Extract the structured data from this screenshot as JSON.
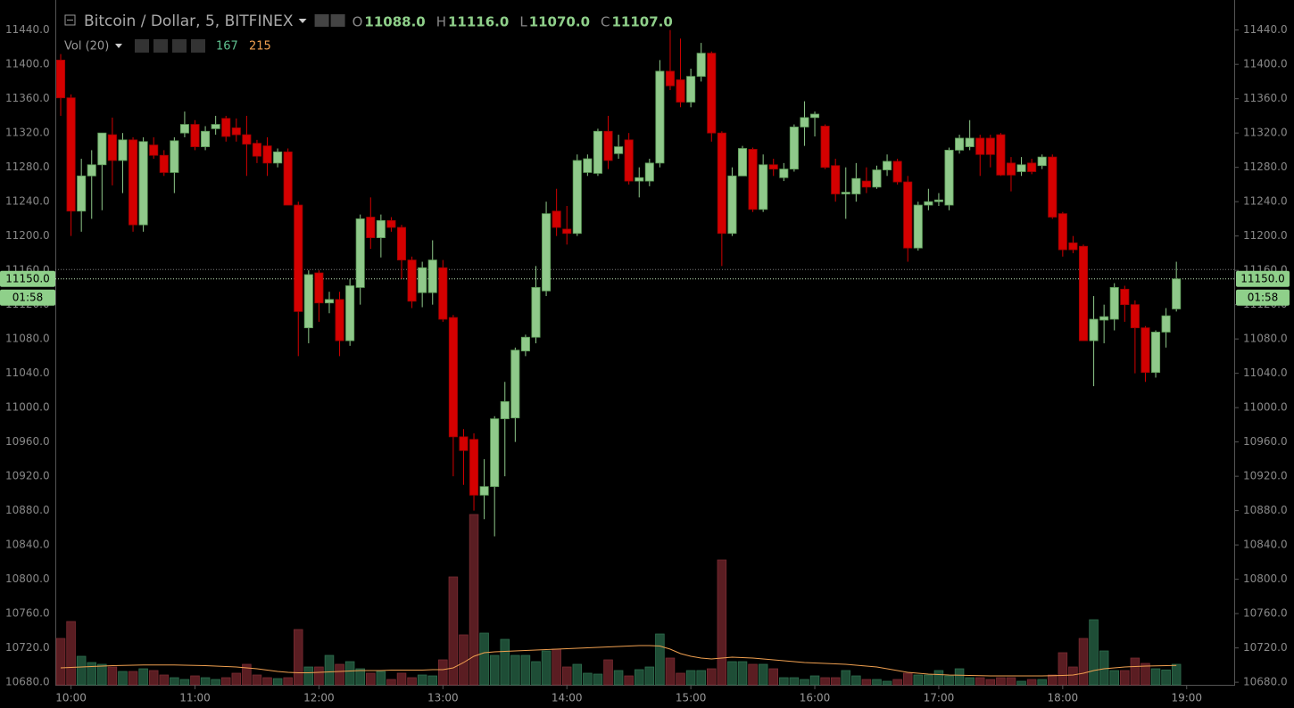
{
  "chart_data": {
    "type": "candlestick",
    "title": "Bitcoin / Dollar, 5, BITFINEX",
    "legend_keys": [
      "O",
      "H",
      "L",
      "C"
    ],
    "legend_values": [
      {
        "value": 11088,
        "label": "11088.0"
      },
      {
        "value": 11116,
        "label": "11116.0"
      },
      {
        "value": 11070,
        "label": "11070.0"
      },
      {
        "value": 11107,
        "label": "11107.0"
      }
    ],
    "volume_title": "Vol (20)",
    "volume_legend": [
      167,
      215
    ],
    "up_color": "#8fc98a",
    "down_color": "#d40000",
    "volume_up_color": "#1e4d36",
    "volume_down_color": "#5a1d22",
    "ma_color": "#f0a050",
    "legend_value_color": "#8fd08a",
    "xlim": [
      -0.52,
      113.6
    ],
    "xticks": [
      {
        "value": 1,
        "label": "10:00"
      },
      {
        "value": 13,
        "label": "11:00"
      },
      {
        "value": 25,
        "label": "12:00"
      },
      {
        "value": 37,
        "label": "13:00"
      },
      {
        "value": 49,
        "label": "14:00"
      },
      {
        "value": 61,
        "label": "15:00"
      },
      {
        "value": 73,
        "label": "16:00"
      },
      {
        "value": 85,
        "label": "17:00"
      },
      {
        "value": 97,
        "label": "18:00"
      },
      {
        "value": 109,
        "label": "19:00"
      }
    ],
    "ylim": [
      10677,
      11475
    ],
    "yticks": [
      {
        "value": 10680,
        "label": "10680.0"
      },
      {
        "value": 10720,
        "label": "10720.0"
      },
      {
        "value": 10760,
        "label": "10760.0"
      },
      {
        "value": 10800,
        "label": "10800.0"
      },
      {
        "value": 10840,
        "label": "10840.0"
      },
      {
        "value": 10880,
        "label": "10880.0"
      },
      {
        "value": 10920,
        "label": "10920.0"
      },
      {
        "value": 10960,
        "label": "10960.0"
      },
      {
        "value": 11000,
        "label": "11000.0"
      },
      {
        "value": 11040,
        "label": "11040.0"
      },
      {
        "value": 11080,
        "label": "11080.0"
      },
      {
        "value": 11120,
        "label": "11120.0"
      },
      {
        "value": 11160,
        "label": "11160.0"
      },
      {
        "value": 11200,
        "label": "11200.0"
      },
      {
        "value": 11240,
        "label": "11240.0"
      },
      {
        "value": 11280,
        "label": "11280.0"
      },
      {
        "value": 11320,
        "label": "11320.0"
      },
      {
        "value": 11360,
        "label": "11360.0"
      },
      {
        "value": 11400,
        "label": "11400.0"
      },
      {
        "value": 11440,
        "label": "11440.0"
      }
    ],
    "volume_ylim": [
      0,
      7680
    ],
    "ref_line": 11161,
    "price_line": {
      "value": 11150,
      "label": "11150.0"
    },
    "countdown": "01:58",
    "open": [
      11405,
      11361,
      11229,
      11270,
      11283,
      11318,
      11288,
      11312,
      11213,
      11306,
      11294,
      11274,
      11320,
      11330,
      11304,
      11325,
      11337,
      11326,
      11318,
      11308,
      11305,
      11285,
      11298,
      11236,
      11093,
      11157,
      11122,
      11126,
      11078,
      11140,
      11222,
      11198,
      11218,
      11210,
      11172,
      11134,
      11134,
      11163,
      11105,
      10966,
      10963,
      10898,
      10908,
      10987,
      10988,
      11066,
      11082,
      11136,
      11229,
      11208,
      11203,
      11274,
      11273,
      11322,
      11296,
      11312,
      11264,
      11264,
      11285,
      11392,
      11382,
      11356,
      11386,
      11413,
      11320,
      11203,
      11270,
      11301,
      11231,
      11283,
      11268,
      11278,
      11327,
      11338,
      11328,
      11282,
      11249,
      11249,
      11264,
      11257,
      11277,
      11287,
      11263,
      11186,
      11236,
      11240,
      11236,
      11300,
      11304,
      11314,
      11314,
      11318,
      11285,
      11275,
      11285,
      11282,
      11292,
      11226,
      11192,
      11188,
      11078,
      11102,
      11103,
      11138,
      11120,
      11093,
      11041,
      11088,
      11115
    ],
    "high": [
      11412,
      11365,
      11290,
      11300,
      11320,
      11338,
      11320,
      11315,
      11315,
      11315,
      11300,
      11315,
      11345,
      11335,
      11328,
      11340,
      11340,
      11337,
      11340,
      11312,
      11315,
      11302,
      11302,
      11240,
      11160,
      11160,
      11135,
      11135,
      11150,
      11225,
      11245,
      11225,
      11222,
      11213,
      11176,
      11170,
      11195,
      11172,
      11108,
      10975,
      10970,
      10940,
      10990,
      11030,
      11070,
      11085,
      11165,
      11240,
      11255,
      11235,
      11295,
      11295,
      11325,
      11340,
      11318,
      11320,
      11280,
      11290,
      11405,
      11440,
      11430,
      11395,
      11425,
      11415,
      11322,
      11280,
      11305,
      11303,
      11295,
      11290,
      11285,
      11330,
      11357,
      11345,
      11330,
      11290,
      11280,
      11285,
      11280,
      11282,
      11295,
      11290,
      11270,
      11240,
      11255,
      11250,
      11303,
      11318,
      11335,
      11318,
      11318,
      11320,
      11292,
      11292,
      11290,
      11295,
      11295,
      11228,
      11200,
      11190,
      11130,
      11120,
      11145,
      11142,
      11125,
      11095,
      11090,
      11116,
      11170
    ],
    "low": [
      11340,
      11200,
      11205,
      11220,
      11230,
      11259,
      11250,
      11205,
      11205,
      11290,
      11270,
      11250,
      11315,
      11300,
      11300,
      11318,
      11310,
      11310,
      11270,
      11285,
      11270,
      11280,
      11236,
      11060,
      11075,
      11100,
      11110,
      11060,
      11072,
      11120,
      11185,
      11175,
      11205,
      11150,
      11116,
      11117,
      11120,
      11100,
      10920,
      10910,
      10880,
      10870,
      10850,
      10920,
      10960,
      11060,
      11075,
      11130,
      11200,
      11190,
      11200,
      11270,
      11270,
      11278,
      11290,
      11260,
      11245,
      11258,
      11280,
      11370,
      11350,
      11350,
      11380,
      11310,
      11165,
      11200,
      11270,
      11228,
      11228,
      11270,
      11264,
      11275,
      11305,
      11316,
      11278,
      11240,
      11220,
      11240,
      11250,
      11255,
      11270,
      11260,
      11170,
      11183,
      11230,
      11235,
      11230,
      11296,
      11300,
      11270,
      11280,
      11270,
      11252,
      11270,
      11272,
      11278,
      11220,
      11176,
      11180,
      11078,
      11025,
      11075,
      11090,
      11100,
      11040,
      11030,
      11035,
      11070,
      11112
    ],
    "close": [
      11361,
      11229,
      11270,
      11283,
      11320,
      11288,
      11312,
      11213,
      11310,
      11294,
      11274,
      11311,
      11330,
      11304,
      11322,
      11330,
      11316,
      11318,
      11307,
      11293,
      11285,
      11298,
      11236,
      11112,
      11155,
      11122,
      11126,
      11078,
      11142,
      11220,
      11198,
      11218,
      11210,
      11172,
      11124,
      11163,
      11172,
      11103,
      10966,
      10950,
      10898,
      10908,
      10987,
      11007,
      11067,
      11082,
      11140,
      11226,
      11210,
      11203,
      11288,
      11290,
      11322,
      11288,
      11304,
      11264,
      11268,
      11285,
      11392,
      11375,
      11356,
      11386,
      11413,
      11320,
      11203,
      11270,
      11302,
      11231,
      11283,
      11278,
      11278,
      11327,
      11338,
      11342,
      11280,
      11249,
      11251,
      11267,
      11257,
      11277,
      11287,
      11263,
      11186,
      11236,
      11240,
      11242,
      11300,
      11314,
      11314,
      11295,
      11295,
      11271,
      11271,
      11283,
      11275,
      11292,
      11222,
      11184,
      11184,
      11078,
      11103,
      11106,
      11140,
      11120,
      11093,
      11041,
      11088,
      11107,
      11150
    ],
    "volume": [
      520,
      710,
      320,
      250,
      230,
      200,
      150,
      150,
      180,
      160,
      110,
      80,
      60,
      100,
      80,
      60,
      80,
      130,
      230,
      110,
      80,
      70,
      80,
      620,
      200,
      200,
      330,
      230,
      260,
      180,
      130,
      150,
      60,
      130,
      80,
      110,
      100,
      280,
      1210,
      560,
      1910,
      580,
      330,
      510,
      330,
      330,
      260,
      380,
      400,
      200,
      230,
      130,
      120,
      280,
      160,
      100,
      170,
      200,
      570,
      300,
      130,
      160,
      160,
      180,
      1400,
      260,
      260,
      230,
      230,
      180,
      80,
      80,
      60,
      100,
      80,
      80,
      160,
      100,
      60,
      60,
      40,
      60,
      130,
      110,
      110,
      160,
      100,
      180,
      80,
      80,
      60,
      80,
      80,
      40,
      60,
      60,
      110,
      360,
      200,
      520,
      730,
      380,
      160,
      160,
      300,
      240,
      180,
      167,
      230
    ],
    "volume_ma": [
      190,
      195,
      200,
      205,
      210,
      215,
      218,
      220,
      222,
      222,
      222,
      222,
      220,
      218,
      215,
      210,
      205,
      200,
      190,
      180,
      165,
      150,
      140,
      135,
      135,
      140,
      145,
      150,
      155,
      160,
      160,
      160,
      165,
      165,
      165,
      165,
      170,
      170,
      190,
      250,
      320,
      360,
      370,
      375,
      380,
      385,
      390,
      395,
      400,
      405,
      410,
      415,
      420,
      425,
      430,
      435,
      440,
      440,
      435,
      400,
      350,
      320,
      300,
      290,
      300,
      310,
      305,
      300,
      290,
      280,
      270,
      260,
      250,
      245,
      240,
      235,
      230,
      220,
      210,
      200,
      180,
      160,
      140,
      130,
      120,
      115,
      110,
      108,
      105,
      102,
      100,
      100,
      100,
      100,
      100,
      100,
      102,
      105,
      110,
      130,
      160,
      180,
      190,
      200,
      205,
      210,
      212,
      215,
      218
    ]
  }
}
